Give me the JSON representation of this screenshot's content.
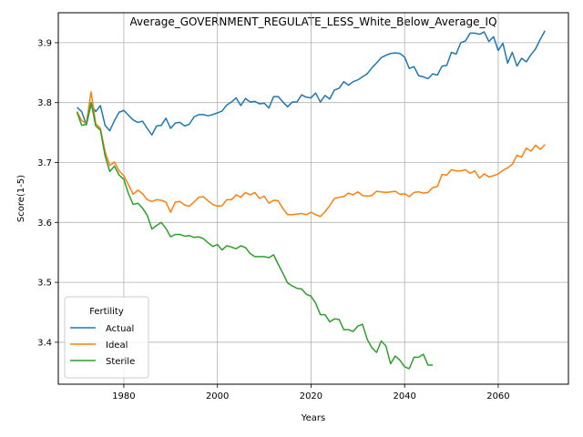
{
  "chart_data": {
    "type": "line",
    "title": "Average_GOVERNMENT_REGULATE_LESS_White_Below_Average_IQ",
    "xlabel": "Years",
    "ylabel": "Score(1-5)",
    "xlim": [
      1966,
      2075
    ],
    "ylim": [
      3.33,
      3.95
    ],
    "x_ticks": [
      1980,
      2000,
      2020,
      2040,
      2060
    ],
    "y_ticks": [
      3.4,
      3.5,
      3.6,
      3.7,
      3.8,
      3.9
    ],
    "y_tick_labels": [
      "3.4",
      "3.5",
      "3.6",
      "3.7",
      "3.8",
      "3.9"
    ],
    "grid": "on",
    "legend": {
      "title": "Fertility",
      "placement": "lower-left"
    },
    "series": [
      {
        "name": "Actual",
        "color": "#1f77b4",
        "x": [
          1970,
          1971,
          1972,
          1973,
          1974,
          1975,
          1976,
          1977,
          1978,
          1979,
          1980,
          1981,
          1982,
          1983,
          1984,
          1985,
          1986,
          1987,
          1988,
          1989,
          1990,
          1991,
          1992,
          1993,
          1994,
          1995,
          1996,
          1997,
          1998,
          1999,
          2000,
          2001,
          2002,
          2003,
          2004,
          2005,
          2006,
          2007,
          2008,
          2009,
          2010,
          2011,
          2012,
          2013,
          2014,
          2015,
          2016,
          2017,
          2018,
          2019,
          2020,
          2021,
          2022,
          2023,
          2024,
          2025,
          2026,
          2027,
          2028,
          2029,
          2030,
          2031,
          2032,
          2033,
          2034,
          2035,
          2036,
          2037,
          2038,
          2039,
          2040,
          2041,
          2042,
          2043,
          2044,
          2045,
          2046,
          2047,
          2048,
          2049,
          2050,
          2051,
          2052,
          2053,
          2054,
          2055,
          2056,
          2057,
          2058,
          2059,
          2060,
          2061,
          2062,
          2063,
          2064,
          2065,
          2066,
          2067,
          2068,
          2069,
          2070
        ],
        "values": [
          3.792,
          3.785,
          3.763,
          3.797,
          3.785,
          3.795,
          3.762,
          3.753,
          3.77,
          3.784,
          3.787,
          3.779,
          3.771,
          3.767,
          3.769,
          3.757,
          3.746,
          3.761,
          3.762,
          3.774,
          3.757,
          3.766,
          3.767,
          3.761,
          3.764,
          3.776,
          3.78,
          3.78,
          3.778,
          3.78,
          3.783,
          3.786,
          3.796,
          3.801,
          3.808,
          3.795,
          3.807,
          3.801,
          3.802,
          3.798,
          3.799,
          3.791,
          3.81,
          3.81,
          3.801,
          3.793,
          3.801,
          3.801,
          3.813,
          3.809,
          3.808,
          3.816,
          3.801,
          3.812,
          3.806,
          3.821,
          3.824,
          3.835,
          3.829,
          3.835,
          3.838,
          3.843,
          3.848,
          3.858,
          3.866,
          3.875,
          3.879,
          3.882,
          3.883,
          3.882,
          3.876,
          3.857,
          3.86,
          3.845,
          3.843,
          3.84,
          3.848,
          3.846,
          3.861,
          3.862,
          3.884,
          3.881,
          3.9,
          3.903,
          3.916,
          3.916,
          3.914,
          3.918,
          3.902,
          3.91,
          3.887,
          3.899,
          3.866,
          3.884,
          3.861,
          3.874,
          3.868,
          3.88,
          3.89,
          3.906,
          3.92
        ]
      },
      {
        "name": "Ideal",
        "color": "#ff7f0e",
        "x": [
          1970,
          1971,
          1972,
          1973,
          1974,
          1975,
          1976,
          1977,
          1978,
          1979,
          1980,
          1981,
          1982,
          1983,
          1984,
          1985,
          1986,
          1987,
          1988,
          1989,
          1990,
          1991,
          1992,
          1993,
          1994,
          1995,
          1996,
          1997,
          1998,
          1999,
          2000,
          2001,
          2002,
          2003,
          2004,
          2005,
          2006,
          2007,
          2008,
          2009,
          2010,
          2011,
          2012,
          2013,
          2014,
          2015,
          2016,
          2017,
          2018,
          2019,
          2020,
          2021,
          2022,
          2023,
          2024,
          2025,
          2026,
          2027,
          2028,
          2029,
          2030,
          2031,
          2032,
          2033,
          2034,
          2035,
          2036,
          2037,
          2038,
          2039,
          2040,
          2041,
          2042,
          2043,
          2044,
          2045,
          2046,
          2047,
          2048,
          2049,
          2050,
          2051,
          2052,
          2053,
          2054,
          2055,
          2056,
          2057,
          2058,
          2059,
          2060,
          2061,
          2062,
          2063,
          2064,
          2065,
          2066,
          2067,
          2068,
          2069,
          2070
        ],
        "values": [
          3.785,
          3.77,
          3.765,
          3.818,
          3.765,
          3.757,
          3.718,
          3.695,
          3.701,
          3.686,
          3.678,
          3.663,
          3.647,
          3.654,
          3.648,
          3.638,
          3.635,
          3.638,
          3.637,
          3.634,
          3.617,
          3.634,
          3.635,
          3.629,
          3.627,
          3.634,
          3.642,
          3.643,
          3.636,
          3.63,
          3.627,
          3.628,
          3.638,
          3.638,
          3.646,
          3.642,
          3.65,
          3.646,
          3.65,
          3.64,
          3.644,
          3.632,
          3.637,
          3.636,
          3.623,
          3.613,
          3.613,
          3.614,
          3.615,
          3.613,
          3.617,
          3.613,
          3.61,
          3.618,
          3.628,
          3.64,
          3.642,
          3.643,
          3.649,
          3.646,
          3.651,
          3.645,
          3.644,
          3.645,
          3.652,
          3.651,
          3.65,
          3.651,
          3.652,
          3.647,
          3.648,
          3.643,
          3.65,
          3.651,
          3.649,
          3.65,
          3.658,
          3.66,
          3.68,
          3.679,
          3.688,
          3.686,
          3.686,
          3.688,
          3.682,
          3.686,
          3.674,
          3.681,
          3.676,
          3.678,
          3.681,
          3.687,
          3.691,
          3.697,
          3.712,
          3.709,
          3.724,
          3.719,
          3.729,
          3.722,
          3.73
        ]
      },
      {
        "name": "Sterile",
        "color": "#2ca02c",
        "x": [
          1970,
          1971,
          1972,
          1973,
          1974,
          1975,
          1976,
          1977,
          1978,
          1979,
          1980,
          1981,
          1982,
          1983,
          1984,
          1985,
          1986,
          1987,
          1988,
          1989,
          1990,
          1991,
          1992,
          1993,
          1994,
          1995,
          1996,
          1997,
          1998,
          1999,
          2000,
          2001,
          2002,
          2003,
          2004,
          2005,
          2006,
          2007,
          2008,
          2009,
          2010,
          2011,
          2012,
          2013,
          2014,
          2015,
          2016,
          2017,
          2018,
          2019,
          2020,
          2021,
          2022,
          2023,
          2024,
          2025,
          2026,
          2027,
          2028,
          2029,
          2030,
          2031,
          2032,
          2033,
          2034,
          2035,
          2036,
          2037,
          2038,
          2039,
          2040,
          2041,
          2042,
          2043,
          2044,
          2045,
          2046,
          2047
        ],
        "values": [
          3.784,
          3.762,
          3.764,
          3.8,
          3.761,
          3.754,
          3.711,
          3.685,
          3.694,
          3.679,
          3.672,
          3.648,
          3.63,
          3.632,
          3.624,
          3.612,
          3.589,
          3.595,
          3.6,
          3.59,
          3.576,
          3.58,
          3.58,
          3.577,
          3.578,
          3.575,
          3.576,
          3.573,
          3.566,
          3.56,
          3.563,
          3.554,
          3.561,
          3.559,
          3.556,
          3.561,
          3.558,
          3.548,
          3.543,
          3.543,
          3.543,
          3.541,
          3.546,
          3.53,
          3.515,
          3.499,
          3.494,
          3.49,
          3.489,
          3.48,
          3.477,
          3.465,
          3.446,
          3.446,
          3.434,
          3.439,
          3.438,
          3.421,
          3.421,
          3.418,
          3.427,
          3.43,
          3.405,
          3.391,
          3.383,
          3.402,
          3.394,
          3.364,
          3.377,
          3.37,
          3.359,
          3.356,
          3.375,
          3.375,
          3.38,
          3.362,
          3.362,
          null
        ]
      }
    ]
  }
}
